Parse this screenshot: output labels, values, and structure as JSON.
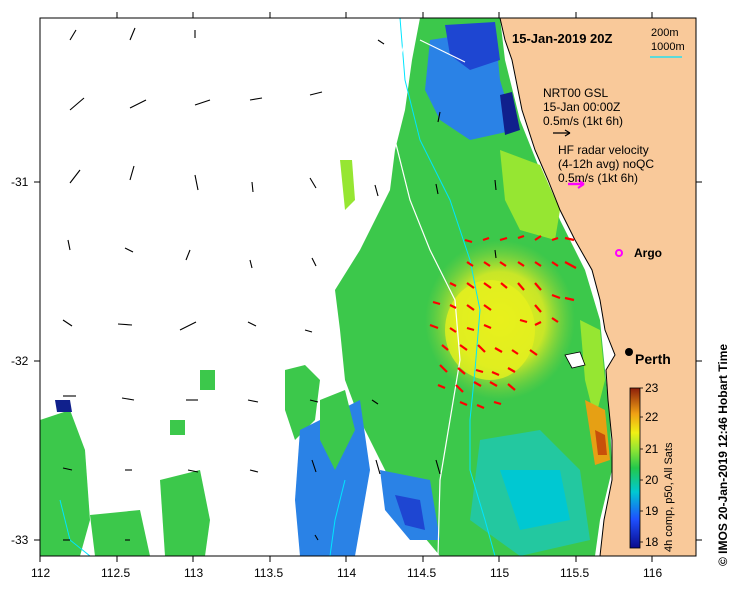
{
  "map": {
    "date_title": "15-Jan-2019 20Z",
    "isobaths": [
      "200m",
      "1000m"
    ],
    "wind_legend": [
      "NRT00 GSL",
      "15-Jan 00:00Z",
      "0.5m/s (1kt 6h)"
    ],
    "radar_legend": [
      "HF radar velocity",
      "(4-12h avg) noQC",
      "0.5m/s (1kt 6h)"
    ],
    "argo_label": "Argo",
    "city_label": "Perth",
    "x_ticks": [
      "112",
      "112.5",
      "113",
      "113.5",
      "114",
      "114.5",
      "115",
      "115.5",
      "116"
    ],
    "y_ticks": [
      "-31",
      "-32",
      "-33"
    ],
    "colorbar": {
      "ticks": [
        "23",
        "22",
        "21",
        "20",
        "19",
        "18"
      ],
      "label": "4h comp, p50, All Sats"
    },
    "credit": "© IMOS 20-Jan-2019 12:46 Hobart Time",
    "colors": {
      "land": "#f9c99a",
      "ocean_bg": "#ffffff",
      "wind_arrow": "#000000",
      "radar_arrow": "#ff0000",
      "argo": "#ff00ff",
      "isobath_200": "#00e5ff",
      "isobath_1000": "#ffffff"
    }
  }
}
